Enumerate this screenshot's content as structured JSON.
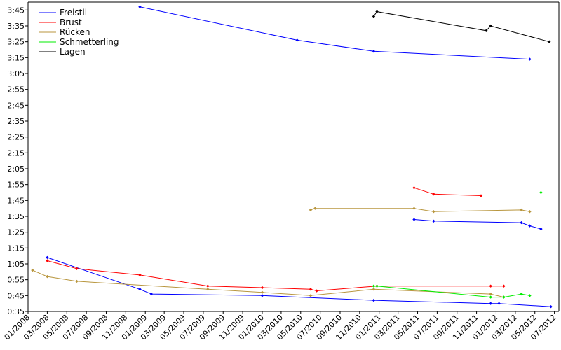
{
  "chart_data": {
    "type": "line",
    "title": "",
    "xlabel": "",
    "ylabel": "",
    "x_ticks": [
      "01/2008",
      "03/2008",
      "05/2008",
      "07/2008",
      "09/2008",
      "11/2008",
      "01/2009",
      "03/2009",
      "05/2009",
      "07/2009",
      "09/2009",
      "11/2009",
      "01/2010",
      "03/2010",
      "05/2010",
      "07/2010",
      "09/2010",
      "11/2010",
      "01/2011",
      "03/2011",
      "05/2011",
      "07/2011",
      "09/2011",
      "11/2011",
      "01/2012",
      "03/2012",
      "05/2012",
      "07/2012"
    ],
    "y_ticks": [
      "0:35",
      "0:45",
      "0:55",
      "1:05",
      "1:15",
      "1:25",
      "1:35",
      "1:45",
      "1:55",
      "2:05",
      "2:15",
      "2:25",
      "2:35",
      "2:45",
      "2:55",
      "3:05",
      "3:15",
      "3:25",
      "3:35",
      "3:45"
    ],
    "xlim": [
      "2008-01-01",
      "2012-07-15"
    ],
    "ylim": [
      "0:35",
      "3:50"
    ],
    "grid": false,
    "legend_position": "top-left",
    "series": [
      {
        "name": "Freistil",
        "color": "#0000ff",
        "segments": [
          [
            [
              "2008-03-01",
              "1:09"
            ],
            [
              "2008-12-15",
              "0:49"
            ],
            [
              "2009-01-20",
              "0:46"
            ],
            [
              "2010-01-01",
              "0:45"
            ],
            [
              "2010-12-15",
              "0:42"
            ],
            [
              "2011-12-15",
              "0:40"
            ],
            [
              "2012-01-10",
              "0:40"
            ],
            [
              "2012-06-20",
              "0:38"
            ]
          ],
          [
            [
              "2008-12-15",
              "3:47"
            ],
            [
              "2010-04-20",
              "3:26"
            ],
            [
              "2010-12-15",
              "3:19"
            ],
            [
              "2012-04-15",
              "3:14"
            ]
          ],
          [
            [
              "2011-04-20",
              "1:33"
            ],
            [
              "2011-06-20",
              "1:32"
            ],
            [
              "2012-03-20",
              "1:31"
            ],
            [
              "2012-04-15",
              "1:29"
            ],
            [
              "2012-05-20",
              "1:27"
            ]
          ]
        ]
      },
      {
        "name": "Brust",
        "color": "#ff0000",
        "segments": [
          [
            [
              "2008-03-01",
              "1:07"
            ],
            [
              "2008-06-01",
              "1:02"
            ],
            [
              "2008-12-15",
              "0:58"
            ],
            [
              "2009-07-15",
              "0:51"
            ],
            [
              "2010-01-01",
              "0:50"
            ],
            [
              "2010-06-01",
              "0:49"
            ],
            [
              "2010-06-20",
              "0:48"
            ],
            [
              "2010-12-25",
              "0:51"
            ],
            [
              "2011-12-15",
              "0:51"
            ],
            [
              "2012-01-25",
              "0:51"
            ]
          ],
          [
            [
              "2011-04-20",
              "1:53"
            ],
            [
              "2011-06-20",
              "1:49"
            ],
            [
              "2011-11-15",
              "1:48"
            ]
          ]
        ]
      },
      {
        "name": "Rücken",
        "color": "#b8963e",
        "segments": [
          [
            [
              "2008-01-15",
              "1:01"
            ],
            [
              "2008-03-01",
              "0:57"
            ],
            [
              "2008-06-01",
              "0:54"
            ],
            [
              "2009-07-15",
              "0:49"
            ],
            [
              "2010-01-01",
              "0:47"
            ],
            [
              "2010-06-01",
              "0:45"
            ],
            [
              "2010-12-15",
              "0:49"
            ],
            [
              "2011-12-15",
              "0:46"
            ],
            [
              "2012-01-25",
              "0:44"
            ]
          ],
          [
            [
              "2010-06-01",
              "1:39"
            ],
            [
              "2010-06-15",
              "1:40"
            ],
            [
              "2011-04-20",
              "1:40"
            ],
            [
              "2011-06-20",
              "1:38"
            ],
            [
              "2012-03-20",
              "1:39"
            ],
            [
              "2012-04-15",
              "1:38"
            ]
          ]
        ]
      },
      {
        "name": "Schmetterling",
        "color": "#00ee00",
        "segments": [
          [
            [
              "2010-12-15",
              "0:51"
            ],
            [
              "2010-12-25",
              "0:51"
            ],
            [
              "2011-12-15",
              "0:44"
            ],
            [
              "2012-01-25",
              "0:44"
            ],
            [
              "2012-03-20",
              "0:46"
            ],
            [
              "2012-04-15",
              "0:45"
            ]
          ],
          [
            [
              "2012-05-20",
              "1:50"
            ]
          ]
        ]
      },
      {
        "name": "Lagen",
        "color": "#000000",
        "segments": [
          [
            [
              "2010-12-15",
              "3:41"
            ],
            [
              "2010-12-25",
              "3:44"
            ],
            [
              "2011-12-01",
              "3:32"
            ],
            [
              "2011-12-15",
              "3:35"
            ],
            [
              "2012-06-15",
              "3:25"
            ]
          ]
        ]
      }
    ]
  }
}
